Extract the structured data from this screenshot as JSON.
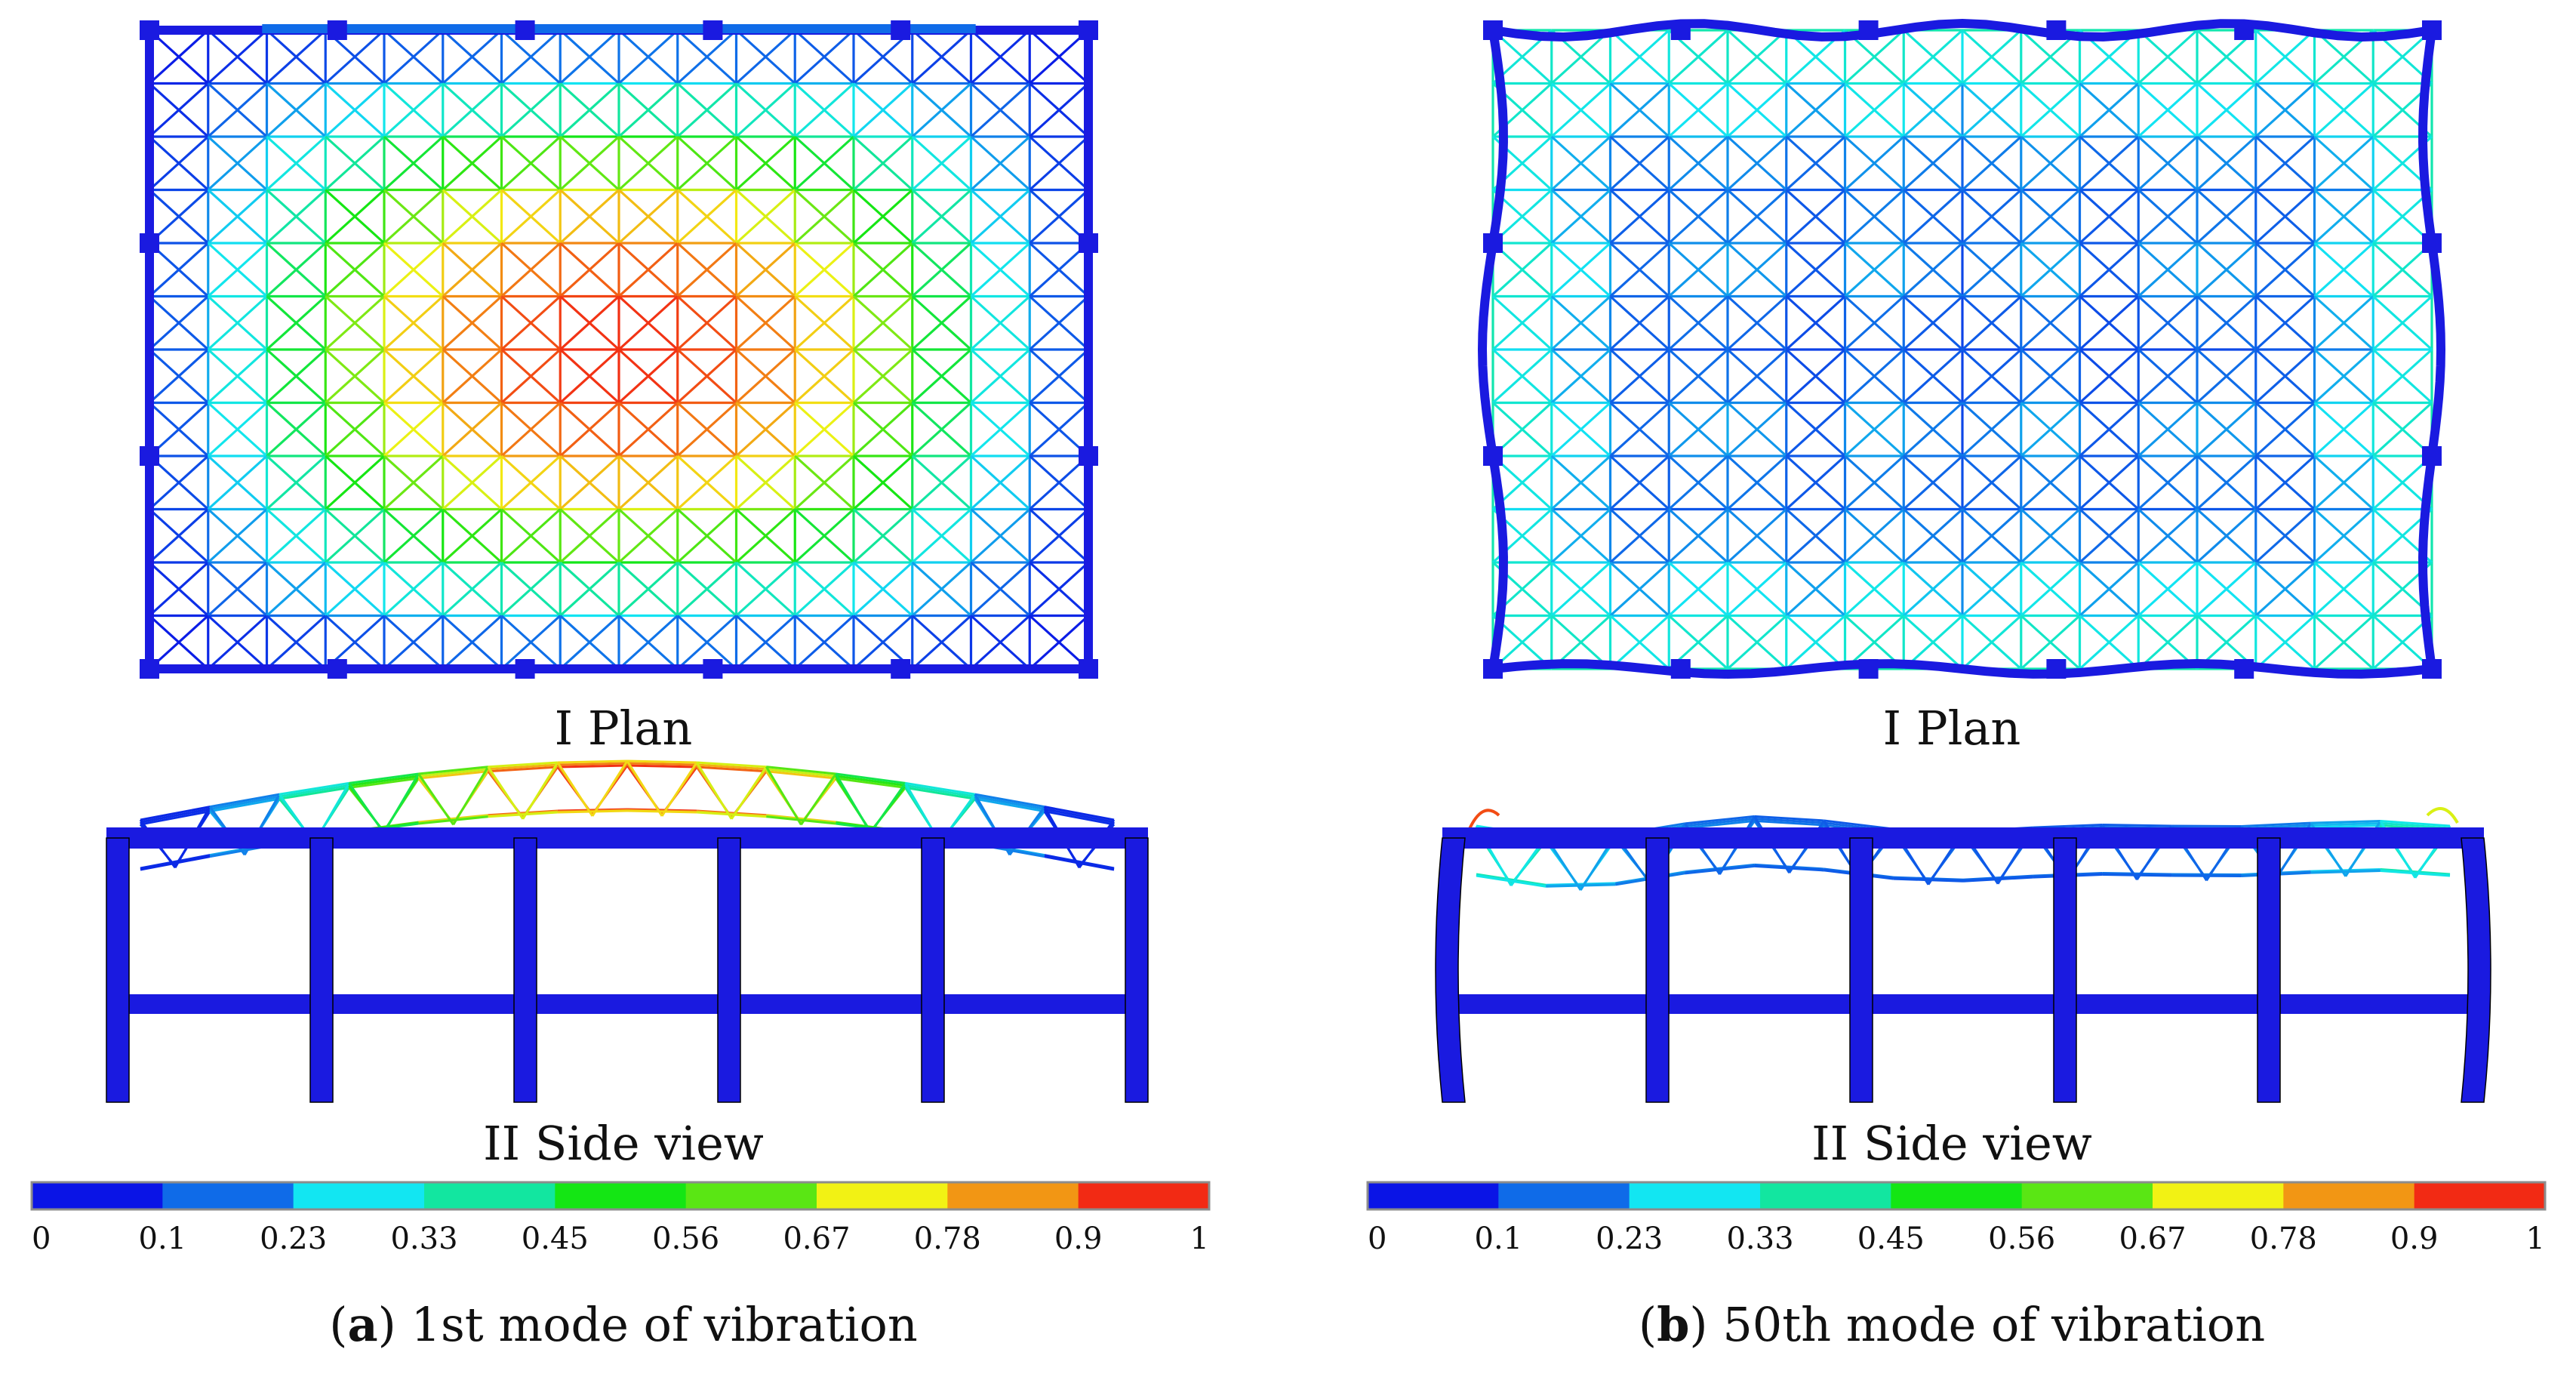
{
  "panels": [
    {
      "id": "a",
      "plan_label": "I Plan",
      "side_label": "II Side view",
      "caption_letter": "a",
      "caption_text": "1st mode of vibration",
      "mode": 1
    },
    {
      "id": "b",
      "plan_label": "I Plan",
      "side_label": "II Side view",
      "caption_letter": "b",
      "caption_text": "50th mode of vibration",
      "mode": 50
    }
  ],
  "scale": {
    "ticks": [
      "0",
      "0.1",
      "0.23",
      "0.33",
      "0.45",
      "0.56",
      "0.67",
      "0.78",
      "0.9",
      "1"
    ],
    "colors": [
      "#0a14e6",
      "#0f6be8",
      "#12e6f2",
      "#12e6a0",
      "#14e614",
      "#5ae614",
      "#f2f214",
      "#f29614",
      "#f22a14"
    ]
  },
  "colors": {
    "frame": "#1a1ae0",
    "background": "#ffffff"
  }
}
